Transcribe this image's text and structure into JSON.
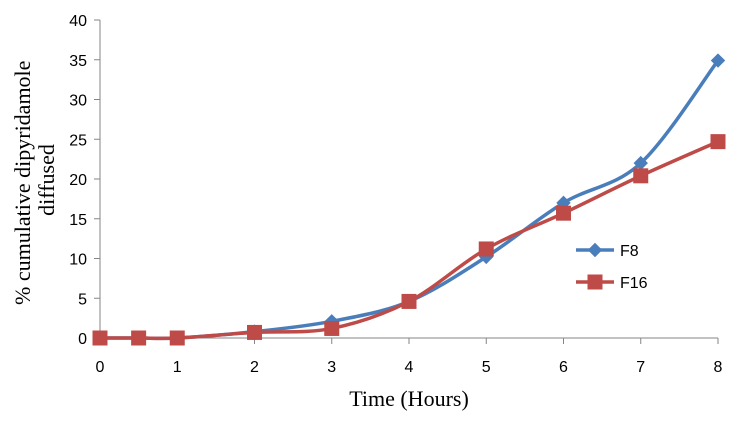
{
  "chart_data": {
    "type": "line",
    "xlabel": "Time  (Hours)",
    "ylabel_lines": [
      "% cumulative dipyridamole",
      "diffused"
    ],
    "xlim": [
      0,
      8
    ],
    "ylim": [
      0,
      40
    ],
    "x_ticks": [
      0,
      1,
      2,
      3,
      4,
      5,
      6,
      7,
      8
    ],
    "y_ticks": [
      0,
      5,
      10,
      15,
      20,
      25,
      30,
      35,
      40
    ],
    "grid": false,
    "legend_position": "right",
    "series": [
      {
        "name": "F8",
        "color": "#4a7ebb",
        "marker": "diamond",
        "x": [
          0,
          0.5,
          1,
          2,
          3,
          4,
          5,
          6,
          7,
          8
        ],
        "y": [
          0,
          0,
          0,
          0.8,
          2.1,
          4.6,
          10.2,
          17.0,
          22.0,
          34.9
        ]
      },
      {
        "name": "F16",
        "color": "#be4b48",
        "marker": "square",
        "x": [
          0,
          0.5,
          1,
          2,
          3,
          4,
          5,
          6,
          7,
          8
        ],
        "y": [
          0,
          0,
          0,
          0.7,
          1.2,
          4.6,
          11.2,
          15.7,
          20.4,
          24.7
        ]
      }
    ]
  }
}
